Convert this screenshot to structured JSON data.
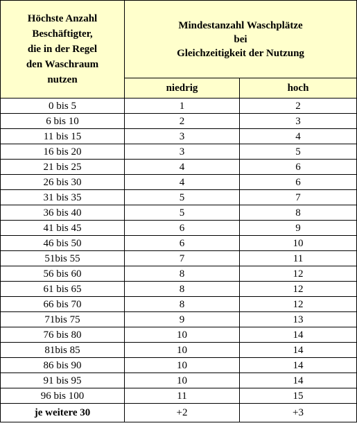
{
  "header": {
    "col1_lines": [
      "Höchste Anzahl",
      "Beschäftigter,",
      "die in der Regel",
      "den Waschraum",
      "nutzen"
    ],
    "group_lines": [
      "Mindestanzahl Waschplätze",
      "bei",
      "Gleichzeitigkeit der Nutzung"
    ],
    "sub_low": "niedrig",
    "sub_high": "hoch"
  },
  "rows": [
    {
      "range": "0 bis 5",
      "low": "1",
      "high": "2"
    },
    {
      "range": "6 bis 10",
      "low": "2",
      "high": "3"
    },
    {
      "range": "11 bis 15",
      "low": "3",
      "high": "4"
    },
    {
      "range": "16 bis 20",
      "low": "3",
      "high": "5"
    },
    {
      "range": "21 bis 25",
      "low": "4",
      "high": "6"
    },
    {
      "range": "26 bis 30",
      "low": "4",
      "high": "6"
    },
    {
      "range": "31 bis 35",
      "low": "5",
      "high": "7"
    },
    {
      "range": "36 bis 40",
      "low": "5",
      "high": "8"
    },
    {
      "range": "41 bis 45",
      "low": "6",
      "high": "9"
    },
    {
      "range": "46 bis 50",
      "low": "6",
      "high": "10"
    },
    {
      "range": "51bis 55",
      "low": "7",
      "high": "11"
    },
    {
      "range": "56 bis 60",
      "low": "8",
      "high": "12"
    },
    {
      "range": "61 bis 65",
      "low": "8",
      "high": "12"
    },
    {
      "range": "66 bis 70",
      "low": "8",
      "high": "12"
    },
    {
      "range": "71bis 75",
      "low": "9",
      "high": "13"
    },
    {
      "range": "76 bis 80",
      "low": "10",
      "high": "14"
    },
    {
      "range": "81bis 85",
      "low": "10",
      "high": "14"
    },
    {
      "range": "86 bis 90",
      "low": "10",
      "high": "14"
    },
    {
      "range": "91 bis 95",
      "low": "10",
      "high": "14"
    },
    {
      "range": "96 bis 100",
      "low": "11",
      "high": "15"
    }
  ],
  "footer": {
    "range": "je weitere 30",
    "low": "+2",
    "high": "+3"
  },
  "colors": {
    "header_bg": "#ffffcc",
    "border": "#000000"
  }
}
